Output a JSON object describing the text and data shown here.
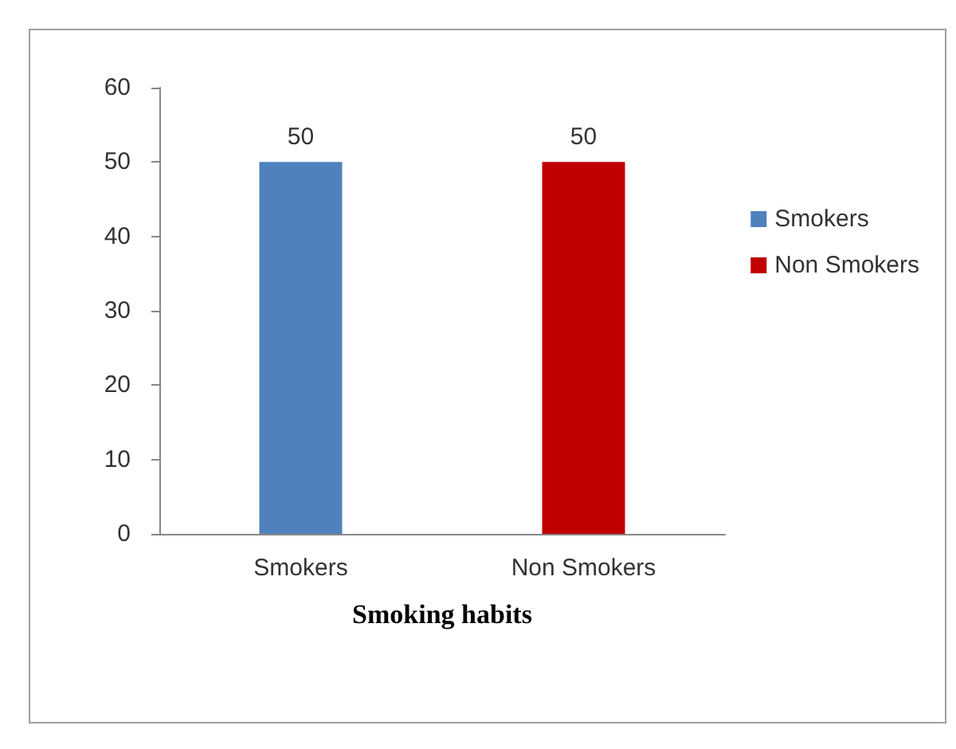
{
  "chart_data": {
    "type": "bar",
    "xlabel": "Smoking habits",
    "categories": [
      "Smokers",
      "Non Smokers"
    ],
    "series": [
      {
        "name": "Smokers",
        "color": "#4f81bd",
        "values": [
          50,
          null
        ]
      },
      {
        "name": "Non Smokers",
        "color": "#c00000",
        "values": [
          null,
          50
        ]
      }
    ],
    "ylim": [
      0,
      60
    ],
    "yticks": [
      0,
      10,
      20,
      30,
      40,
      50,
      60
    ],
    "grid": false,
    "legend": "right",
    "data_labels": true
  }
}
